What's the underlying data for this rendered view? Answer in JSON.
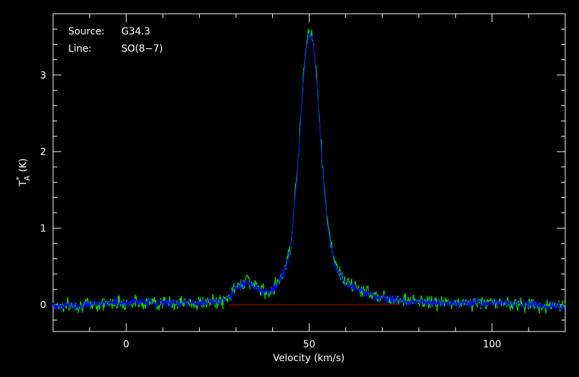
{
  "chart_data": {
    "type": "line",
    "title": "",
    "annotations": [
      {
        "key": "Source:",
        "value": "G34.3"
      },
      {
        "key": "Line:",
        "value": "SO(8−7)"
      }
    ],
    "xlabel": "Velocity (km/s)",
    "ylabel": "T",
    "ylabel_sub": "A",
    "ylabel_sup": "*",
    "ylabel_unit": "(K)",
    "xlim": [
      -20,
      120
    ],
    "ylim": [
      -0.35,
      3.8
    ],
    "x_ticks": [
      0,
      50,
      100
    ],
    "y_ticks": [
      0,
      1,
      2,
      3
    ],
    "grid": false,
    "series": [
      {
        "color": "#00e000",
        "noise": 0.045,
        "seed": 7,
        "x": [
          -20,
          0,
          20,
          27,
          30,
          33,
          35,
          38,
          40,
          43,
          45,
          47,
          48,
          49,
          50,
          51,
          52,
          53,
          54,
          55,
          57,
          60,
          65,
          70,
          80,
          90,
          100,
          110,
          120
        ],
        "y": [
          -0.02,
          0.03,
          0.02,
          0.05,
          0.22,
          0.34,
          0.25,
          0.16,
          0.2,
          0.42,
          0.78,
          1.9,
          2.7,
          3.3,
          3.6,
          3.5,
          3.0,
          2.3,
          1.6,
          1.05,
          0.55,
          0.28,
          0.18,
          0.1,
          0.04,
          0.02,
          0.03,
          0.0,
          -0.03
        ]
      },
      {
        "color": "#0000ff",
        "noise": 0.03,
        "seed": 13,
        "x": [
          -20,
          0,
          20,
          27,
          30,
          33,
          35,
          38,
          40,
          43,
          45,
          47,
          48,
          49,
          50,
          51,
          52,
          53,
          54,
          55,
          57,
          60,
          65,
          70,
          80,
          90,
          100,
          110,
          120
        ],
        "y": [
          -0.02,
          0.03,
          0.02,
          0.05,
          0.2,
          0.31,
          0.23,
          0.14,
          0.18,
          0.4,
          0.75,
          1.85,
          2.65,
          3.25,
          3.55,
          3.45,
          2.95,
          2.25,
          1.55,
          1.0,
          0.52,
          0.26,
          0.16,
          0.08,
          0.03,
          0.02,
          0.03,
          0.0,
          -0.03
        ]
      }
    ],
    "baseline": {
      "color": "#cc0000",
      "y": 0,
      "x_range": [
        28,
        75
      ]
    }
  }
}
